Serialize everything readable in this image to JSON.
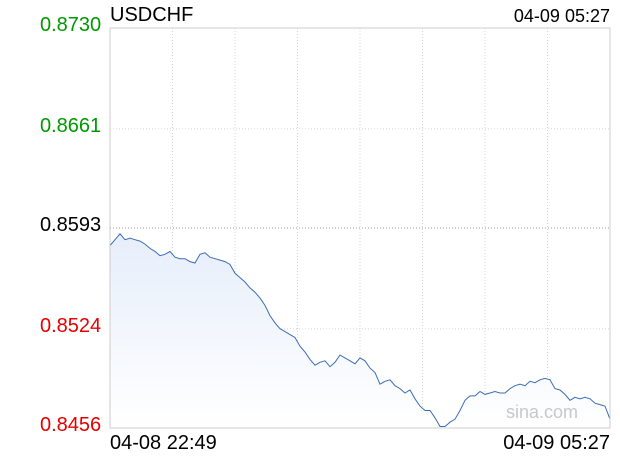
{
  "header": {
    "symbol": "USDCHF",
    "time": "04-09 05:27"
  },
  "watermark": "sina.com",
  "colors": {
    "up": "#009900",
    "down": "#e60000",
    "neutral": "#000000",
    "line": "#3b6db4",
    "fill": "#e6eefb"
  },
  "chart_data": {
    "type": "area",
    "title": "USDCHF",
    "xlabel": "",
    "ylabel": "",
    "x_range": [
      "04-08 22:49",
      "04-09 05:27"
    ],
    "ylim": [
      0.8456,
      0.873
    ],
    "prev_close": 0.8593,
    "yticks": [
      {
        "label": "0.8730",
        "value": 0.873,
        "state": "up"
      },
      {
        "label": "0.8661",
        "value": 0.8661,
        "state": "up"
      },
      {
        "label": "0.8593",
        "value": 0.8593,
        "state": "neutral"
      },
      {
        "label": "0.8524",
        "value": 0.8524,
        "state": "down"
      },
      {
        "label": "0.8456",
        "value": 0.8456,
        "state": "down"
      }
    ],
    "xticks": [
      "04-08 22:49",
      "04-09 05:27"
    ],
    "series": [
      {
        "x": [
          0,
          5,
          10,
          15,
          20,
          25,
          30,
          35,
          40,
          45,
          50,
          55,
          60,
          65,
          70,
          75,
          80,
          85,
          90,
          95,
          100,
          105,
          110,
          115,
          120,
          125,
          130,
          135,
          140,
          145,
          150,
          155,
          160,
          165,
          170,
          175,
          180,
          185,
          190,
          195,
          200,
          205,
          210,
          215,
          220,
          225,
          230,
          235,
          240,
          245,
          250,
          255,
          260,
          265,
          270,
          275,
          280,
          285,
          290,
          295,
          300,
          305,
          310,
          315,
          320,
          325,
          330,
          335,
          340,
          345,
          350,
          355,
          360,
          365,
          370,
          375,
          380,
          385,
          390,
          395,
          400,
          405,
          410,
          415,
          420,
          425,
          430,
          435,
          440,
          445,
          450,
          455,
          460,
          465,
          470,
          475,
          480,
          485,
          490,
          495,
          500
        ],
        "values": [
          0.8581,
          0.8585,
          0.8589,
          0.8585,
          0.8586,
          0.8585,
          0.8584,
          0.8582,
          0.8579,
          0.8577,
          0.8574,
          0.8575,
          0.8577,
          0.8573,
          0.8572,
          0.8572,
          0.857,
          0.8569,
          0.8575,
          0.8576,
          0.8573,
          0.8572,
          0.8571,
          0.857,
          0.8568,
          0.8562,
          0.8559,
          0.8556,
          0.8552,
          0.8549,
          0.8545,
          0.854,
          0.8533,
          0.8528,
          0.8524,
          0.8522,
          0.852,
          0.8518,
          0.8512,
          0.8508,
          0.8503,
          0.8499,
          0.8501,
          0.8502,
          0.8498,
          0.8501,
          0.8506,
          0.8504,
          0.8502,
          0.85,
          0.8504,
          0.8502,
          0.8497,
          0.8494,
          0.8486,
          0.8488,
          0.8489,
          0.8485,
          0.8483,
          0.848,
          0.8482,
          0.8476,
          0.8471,
          0.8468,
          0.8468,
          0.8463,
          0.8457,
          0.8457,
          0.846,
          0.8462,
          0.8468,
          0.8475,
          0.8478,
          0.8478,
          0.8481,
          0.8479,
          0.848,
          0.8481,
          0.848,
          0.848,
          0.8483,
          0.8485,
          0.8486,
          0.8485,
          0.8488,
          0.8487,
          0.8489,
          0.849,
          0.8489,
          0.8483,
          0.8482,
          0.8479,
          0.8475,
          0.8477,
          0.8476,
          0.8477,
          0.8476,
          0.8473,
          0.8472,
          0.8471,
          0.8462
        ]
      }
    ],
    "x_max": 500,
    "grid": true,
    "legend": "none"
  }
}
